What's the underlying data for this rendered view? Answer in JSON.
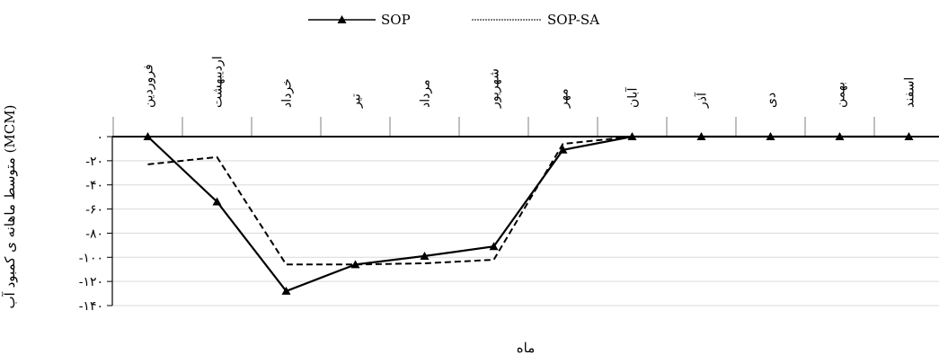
{
  "chart_data": {
    "type": "line",
    "xlabel": "ماه",
    "ylabel": "متوسط ماهانه ی کمبود آب (MCM)",
    "categories": [
      "فروردین",
      "اردیبهشت",
      "خرداد",
      "تیر",
      "مرداد",
      "شهریور",
      "مهر",
      "آبان",
      "آذر",
      "دی",
      "بهمن",
      "اسفند"
    ],
    "y_tick_labels": [
      "۰",
      "-۲۰",
      "-۴۰",
      "-۶۰",
      "-۸۰",
      "-۱۰۰",
      "-۱۲۰",
      "-۱۴۰"
    ],
    "y_ticks": [
      0,
      -20,
      -40,
      -60,
      -80,
      -100,
      -120,
      -140
    ],
    "ylim": [
      -140,
      0
    ],
    "grid": true,
    "legend_position": "top",
    "series": [
      {
        "name": "SOP",
        "style": "solid",
        "marker": "triangle",
        "color": "#000000",
        "values": [
          0,
          -54,
          -128,
          -106,
          -99,
          -91,
          -11,
          0,
          0,
          0,
          0,
          0
        ]
      },
      {
        "name": "SOP-SA",
        "style": "dashed",
        "marker": "none",
        "color": "#000000",
        "values": [
          -23,
          -17,
          -106,
          -106,
          -105,
          -102,
          -6,
          0,
          0,
          0,
          0,
          null
        ]
      }
    ]
  }
}
